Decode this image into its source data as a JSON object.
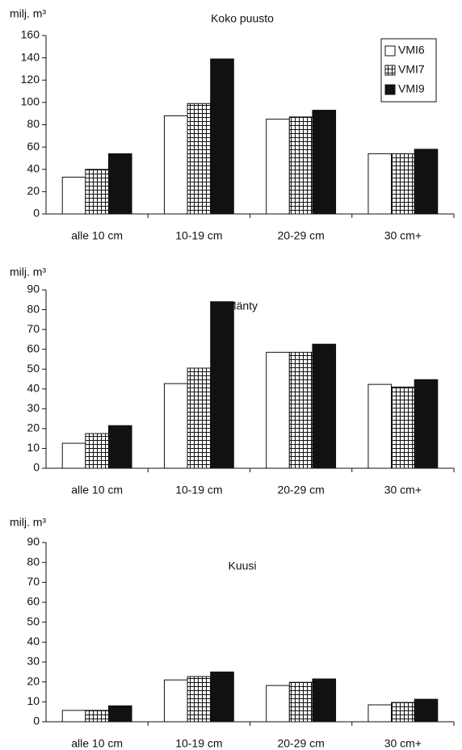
{
  "chart_data": [
    {
      "type": "bar",
      "title": "Koko puusto",
      "ylabel": "milj. m³",
      "categories": [
        "alle 10 cm",
        "10-19 cm",
        "20-29 cm",
        "30 cm+"
      ],
      "series": [
        {
          "name": "VMI6",
          "color": "#ffffff",
          "values": [
            33,
            88,
            85,
            54
          ]
        },
        {
          "name": "VMI7",
          "color": "#ffffff",
          "pattern": "grid",
          "values": [
            40,
            99,
            87,
            54
          ]
        },
        {
          "name": "VMI9",
          "color": "#111111",
          "values": [
            54,
            139,
            93,
            58
          ]
        }
      ],
      "ylim": [
        0,
        160
      ],
      "yticks": [
        0,
        20,
        40,
        60,
        80,
        100,
        120,
        140,
        160
      ],
      "legend": "top-right"
    },
    {
      "type": "bar",
      "title": "Mänty",
      "ylabel": "milj. m³",
      "categories": [
        "alle 10 cm",
        "10-19 cm",
        "20-29 cm",
        "30 cm+"
      ],
      "series": [
        {
          "name": "VMI6",
          "color": "#ffffff",
          "values": [
            12.6,
            42.7,
            58.5,
            42.3
          ]
        },
        {
          "name": "VMI7",
          "color": "#ffffff",
          "pattern": "grid",
          "values": [
            17.5,
            50.5,
            58.5,
            41
          ]
        },
        {
          "name": "VMI9",
          "color": "#111111",
          "values": [
            21.5,
            84,
            62.6,
            44.7
          ]
        }
      ],
      "ylim": [
        0,
        90
      ],
      "yticks": [
        0,
        10,
        20,
        30,
        40,
        50,
        60,
        70,
        80,
        90
      ]
    },
    {
      "type": "bar",
      "title": "Kuusi",
      "ylabel": "milj. m³",
      "categories": [
        "alle 10 cm",
        "10-19 cm",
        "20-29 cm",
        "30 cm+"
      ],
      "series": [
        {
          "name": "VMI6",
          "color": "#ffffff",
          "values": [
            5.7,
            21,
            18.2,
            8.5
          ]
        },
        {
          "name": "VMI7",
          "color": "#ffffff",
          "pattern": "grid",
          "values": [
            5.7,
            22.7,
            19.8,
            9.7
          ]
        },
        {
          "name": "VMI9",
          "color": "#111111",
          "values": [
            8,
            25,
            21.5,
            11.3
          ]
        }
      ],
      "ylim": [
        0,
        90
      ],
      "yticks": [
        0,
        10,
        20,
        30,
        40,
        50,
        60,
        70,
        80,
        90
      ]
    }
  ]
}
